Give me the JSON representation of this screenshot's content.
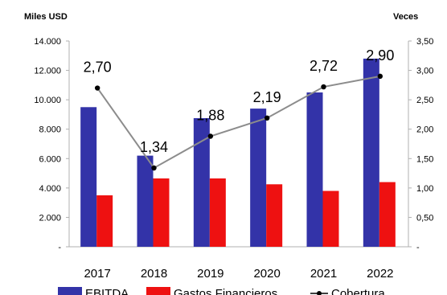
{
  "chart_data": {
    "type": "bar",
    "categories": [
      "2017",
      "2018",
      "2019",
      "2020",
      "2021",
      "2022"
    ],
    "left_axis_label": "Miles USD",
    "right_axis_label": "Veces",
    "left_ylim": [
      0,
      14000
    ],
    "right_ylim": [
      0,
      3.5
    ],
    "left_ticks": [
      "-",
      "2.000",
      "4.000",
      "6.000",
      "8.000",
      "10.000",
      "12.000",
      "14.000"
    ],
    "right_ticks": [
      "-",
      "0,50",
      "1,00",
      "1,50",
      "2,00",
      "2,50",
      "3,00",
      "3,50"
    ],
    "series": [
      {
        "name": "EBITDA",
        "type": "bar",
        "axis": "left",
        "color": "#3333a8",
        "values": [
          9500,
          6200,
          8750,
          9400,
          10500,
          12800
        ]
      },
      {
        "name": "Gastos Financieros",
        "type": "bar",
        "axis": "left",
        "color": "#ee1111",
        "values": [
          3500,
          4650,
          4650,
          4250,
          3800,
          4400
        ]
      },
      {
        "name": "Cobertura",
        "type": "line",
        "axis": "right",
        "color": "#8c8c8c",
        "marker_color": "#000000",
        "values": [
          2.7,
          1.34,
          1.88,
          2.19,
          2.72,
          2.9
        ],
        "labels": [
          "2,70",
          "1,34",
          "1,88",
          "2,19",
          "2,72",
          "2,90"
        ]
      }
    ],
    "legend_position": "bottom",
    "grid": false
  }
}
